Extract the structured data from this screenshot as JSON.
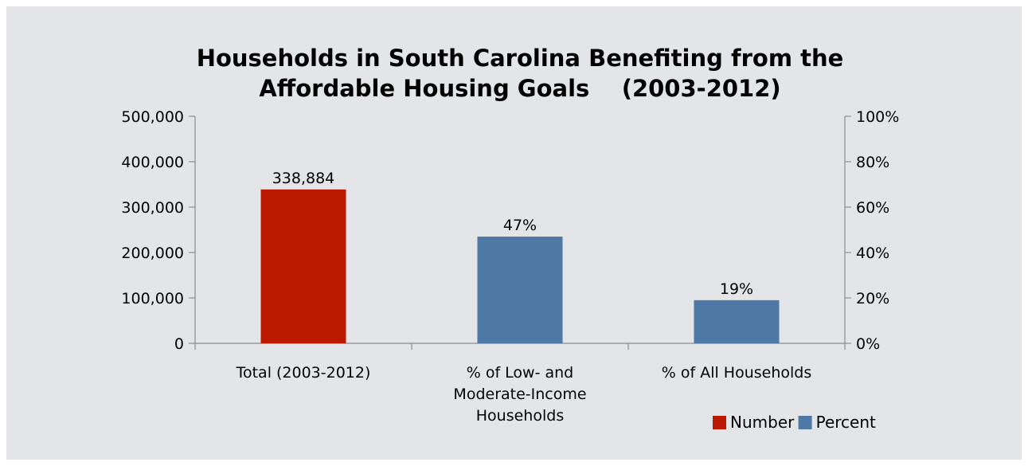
{
  "chart_data": {
    "type": "bar",
    "title_lines": [
      "Households in South Carolina Benefiting from the",
      "Affordable Housing Goals    (2003-2012)"
    ],
    "categories": [
      [
        "Total (2003-2012)"
      ],
      [
        "% of Low- and",
        "Moderate-Income",
        "Households"
      ],
      [
        "% of All Households"
      ]
    ],
    "series": [
      {
        "name": "Number",
        "color": "#bb1a00",
        "axis": "left",
        "values": [
          338884,
          null,
          null
        ]
      },
      {
        "name": "Percent",
        "color": "#4e79a7",
        "axis": "right",
        "values": [
          null,
          47,
          19
        ]
      }
    ],
    "data_labels": [
      "338,884",
      "47%",
      "19%"
    ],
    "y_left": {
      "min": 0,
      "max": 500000,
      "ticks": [
        "0",
        "100,000",
        "200,000",
        "300,000",
        "400,000",
        "500,000"
      ]
    },
    "y_right": {
      "min": 0,
      "max": 100,
      "ticks": [
        "0%",
        "20%",
        "40%",
        "60%",
        "80%",
        "100%"
      ]
    },
    "grid": false,
    "legend": {
      "position": "bottom-right"
    }
  }
}
